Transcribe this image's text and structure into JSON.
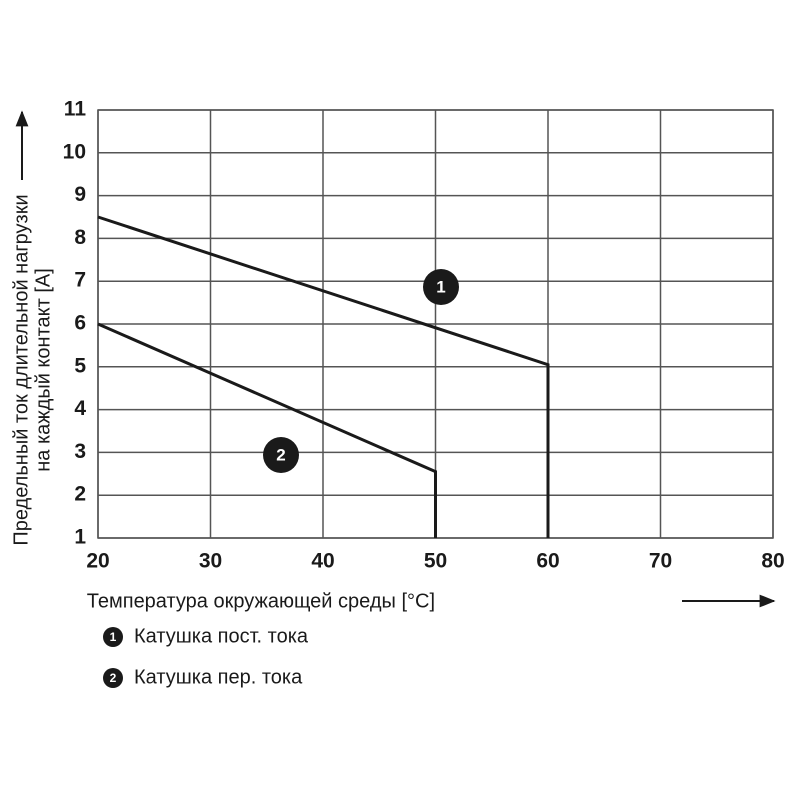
{
  "chart_data": {
    "type": "line",
    "x_label": "Температура окружающей среды [°C]",
    "y_label": [
      "Предельный ток длительной нагрузки",
      "на каждый контакт [A]"
    ],
    "xlim": [
      20,
      80
    ],
    "xticks": [
      20,
      30,
      40,
      50,
      60,
      70,
      80
    ],
    "ylim": [
      1,
      11
    ],
    "yticks": [
      1,
      2,
      3,
      4,
      5,
      6,
      7,
      8,
      9,
      10,
      11
    ],
    "grid": true,
    "series": [
      {
        "name": "Катушка пост. тока",
        "marker_label": "1",
        "color": "#1a1a1a",
        "x": [
          20,
          60,
          60
        ],
        "values": [
          8.5,
          5.05,
          1
        ]
      },
      {
        "name": "Катушка пер. тока",
        "marker_label": "2",
        "color": "#1a1a1a",
        "x": [
          20,
          50,
          50
        ],
        "values": [
          6.0,
          2.55,
          1
        ]
      }
    ]
  }
}
